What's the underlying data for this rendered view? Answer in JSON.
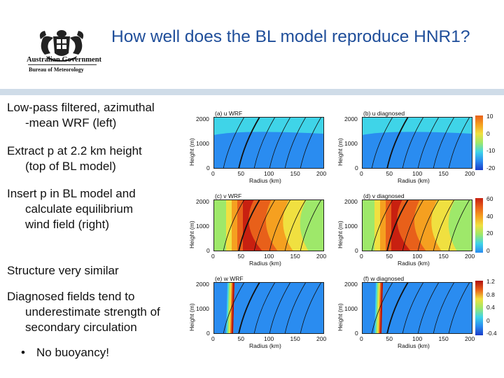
{
  "header": {
    "title": "How well does the BL model reproduce HNR1?",
    "logo_line1": "Australian Government",
    "logo_line2": "Bureau of Meteorology"
  },
  "bullets": [
    {
      "first": "Low-pass filtered, azimuthal",
      "rest": "-mean WRF (left)"
    },
    {
      "first": "Extract p at 2.2 km height",
      "rest": "(top of BL model)"
    },
    {
      "first": "Insert p in BL model and",
      "rest": "calculate equilibrium wind field (right)"
    },
    {
      "first": "Structure very similar",
      "rest": ""
    },
    {
      "first": "Diagnosed fields tend to",
      "rest": "underestimate strength of secondary circulation"
    }
  ],
  "sub_bullet": "No buoyancy!",
  "axes": {
    "ylabel": "Height (m)",
    "xlabel": "Radius (km)",
    "xticks": [
      "0",
      "50",
      "100",
      "150",
      "200"
    ],
    "yticks": [
      "0",
      "1000",
      "2000"
    ]
  },
  "panels": [
    {
      "title": "(a) u WRF",
      "field": "u"
    },
    {
      "title": "(b) u diagnosed",
      "field": "u"
    },
    {
      "title": "(c) v WRF",
      "field": "v"
    },
    {
      "title": "(d) v diagnosed",
      "field": "v"
    },
    {
      "title": "(e) w WRF",
      "field": "w"
    },
    {
      "title": "(f) w diagnosed",
      "field": "w"
    }
  ],
  "colorbars": [
    {
      "ticks": [
        "10",
        "0",
        "-10",
        "-20"
      ]
    },
    {
      "ticks": [
        "60",
        "40",
        "20",
        "0"
      ]
    },
    {
      "ticks": [
        "1.2",
        "0.8",
        "0.4",
        "0",
        "-0.4"
      ]
    }
  ],
  "colors": {
    "title": "#1f4e9a",
    "band": "#cfdce8"
  }
}
